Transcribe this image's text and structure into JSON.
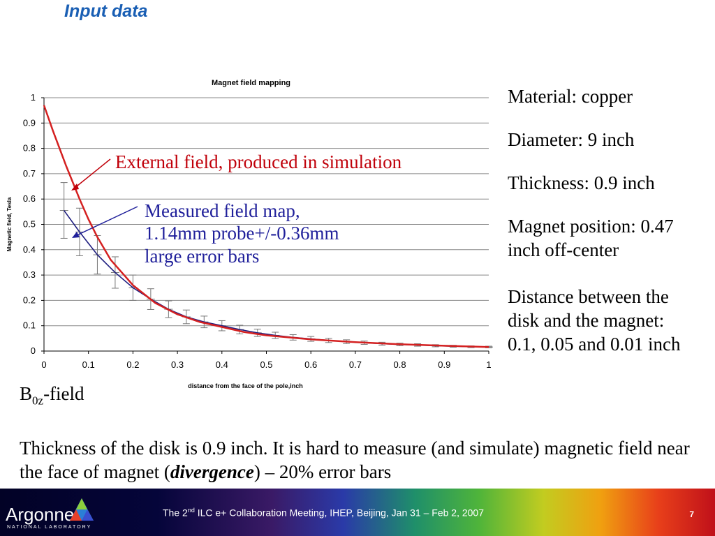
{
  "slide": {
    "title": "Input data",
    "bfield": {
      "main": "B",
      "sub": "0z",
      "suffix": "-field"
    },
    "paragraph": {
      "part1": "Thickness of the disk is 0.9 inch. It is hard to measure (and simulate) magnetic field near the face of magnet (",
      "emph": "divergence",
      "part2": ") – 20% error bars"
    },
    "info": [
      "Material: copper",
      "Diameter: 9 inch",
      "Thickness: 0.9 inch",
      "Magnet position: 0.47 inch off-center",
      "Distance between the disk and the magnet: 0.1, 0.05 and 0.01 inch"
    ]
  },
  "annotations": {
    "external": "External field, produced in simulation",
    "measured": [
      "Measured field map,",
      "1.14mm probe+/-0.36mm",
      "large error bars"
    ]
  },
  "footer": {
    "logo": "Argonne",
    "logo_sub": "NATIONAL LABORATORY",
    "text_pre": "The 2",
    "text_sup": "nd",
    "text_post": " ILC e+ Collaboration Meeting, IHEP, Beijing, Jan 31 – Feb 2, 2007",
    "page": "7"
  },
  "colors": {
    "title": "#1a5fb4",
    "simulation": "#d42020",
    "measured": "#1f1f80",
    "error_bar": "#777777"
  },
  "chart_data": {
    "type": "line",
    "title": "Magnet field mapping",
    "xlabel": "distance from the face of the pole,inch",
    "ylabel": "Magnetic field, Tesla",
    "xlim": [
      0,
      1
    ],
    "ylim": [
      0,
      1
    ],
    "xticks": [
      "0",
      "0.1",
      "0.2",
      "0.3",
      "0.4",
      "0.5",
      "0.6",
      "0.7",
      "0.8",
      "0.9",
      "1"
    ],
    "yticks": [
      "0",
      "0.1",
      "0.2",
      "0.3",
      "0.4",
      "0.5",
      "0.6",
      "0.7",
      "0.8",
      "0.9",
      "1"
    ],
    "grid": "horizontal",
    "series": [
      {
        "name": "External field, produced in simulation",
        "x": [
          0,
          0.02,
          0.05,
          0.08,
          0.1,
          0.12,
          0.15,
          0.18,
          0.2,
          0.25,
          0.3,
          0.35,
          0.4,
          0.45,
          0.5,
          0.6,
          0.7,
          0.8,
          0.9,
          1.0
        ],
        "y": [
          0.97,
          0.87,
          0.73,
          0.6,
          0.52,
          0.45,
          0.36,
          0.3,
          0.26,
          0.19,
          0.145,
          0.115,
          0.095,
          0.075,
          0.062,
          0.046,
          0.035,
          0.027,
          0.021,
          0.016
        ]
      },
      {
        "name": "Measured field map, 1.14mm probe+/-0.36mm large error bars",
        "x": [
          0.045,
          0.08,
          0.12,
          0.16,
          0.2,
          0.24,
          0.28,
          0.32,
          0.36,
          0.4,
          0.44,
          0.48,
          0.52,
          0.56,
          0.6,
          0.64,
          0.68,
          0.72,
          0.76,
          0.8,
          0.84,
          0.88,
          0.92,
          0.96,
          1.0
        ],
        "y": [
          0.555,
          0.47,
          0.38,
          0.31,
          0.25,
          0.205,
          0.165,
          0.135,
          0.115,
          0.1,
          0.085,
          0.072,
          0.062,
          0.054,
          0.048,
          0.042,
          0.037,
          0.033,
          0.029,
          0.026,
          0.024,
          0.021,
          0.019,
          0.017,
          0.016
        ],
        "error": [
          0.11,
          0.094,
          0.076,
          0.062,
          0.05,
          0.041,
          0.033,
          0.027,
          0.023,
          0.02,
          0.017,
          0.0144,
          0.0124,
          0.0108,
          0.0096,
          0.0084,
          0.0074,
          0.0066,
          0.0058,
          0.0052,
          0.0048,
          0.0042,
          0.0038,
          0.0034,
          0.0032
        ]
      }
    ]
  }
}
